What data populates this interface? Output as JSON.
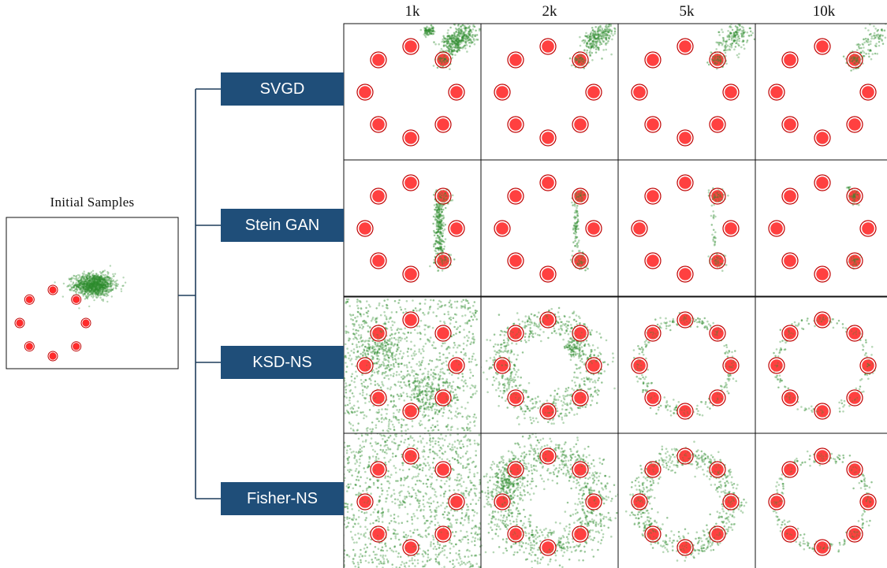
{
  "initial": {
    "title": "Initial Samples",
    "cluster_center": [
      1.25,
      1.15
    ],
    "cluster_spread": [
      0.42,
      0.24
    ],
    "cluster_count": 1300
  },
  "checkpoints": [
    "1k",
    "2k",
    "5k",
    "10k"
  ],
  "methods": [
    "SVGD",
    "Stein GAN",
    "KSD-NS",
    "Fisher-NS"
  ],
  "colors": {
    "mode_fill": "#ff2b2b",
    "mode_ring": "#c00000",
    "sample": "#2e8b2e",
    "method_box": "#1f4e79",
    "connector": "#1f3d5c"
  },
  "target_modes": {
    "radius": 1,
    "count": 8
  },
  "sample_patterns": [
    [
      {
        "kind": "mode",
        "mode": "top-right",
        "spread": 0.07,
        "count": 220
      },
      {
        "kind": "streak",
        "from": [
          0.8,
          0.95
        ],
        "to": [
          1.3,
          1.35
        ],
        "spread": 0.12,
        "count": 380
      },
      {
        "kind": "streak",
        "from": [
          0.3,
          1.3
        ],
        "to": [
          0.45,
          1.38
        ],
        "spread": 0.05,
        "count": 80
      }
    ],
    [
      {
        "kind": "mode",
        "mode": "top-right",
        "spread": 0.07,
        "count": 220
      },
      {
        "kind": "streak",
        "from": [
          0.85,
          1.0
        ],
        "to": [
          1.3,
          1.35
        ],
        "spread": 0.12,
        "count": 250
      }
    ],
    [
      {
        "kind": "mode",
        "mode": "top-right",
        "spread": 0.07,
        "count": 220
      },
      {
        "kind": "streak",
        "from": [
          0.85,
          1.0
        ],
        "to": [
          1.3,
          1.35
        ],
        "spread": 0.13,
        "count": 160
      }
    ],
    [
      {
        "kind": "mode",
        "mode": "top-right",
        "spread": 0.07,
        "count": 220
      },
      {
        "kind": "streak",
        "from": [
          0.9,
          1.0
        ],
        "to": [
          1.3,
          1.3
        ],
        "spread": 0.13,
        "count": 90
      }
    ],
    [
      {
        "kind": "mode",
        "mode": "top-right",
        "spread": 0.08,
        "count": 160
      },
      {
        "kind": "mode",
        "mode": "bottom-right",
        "spread": 0.08,
        "count": 160
      },
      {
        "kind": "streak",
        "from": [
          0.62,
          0.6
        ],
        "to": [
          0.62,
          -0.6
        ],
        "spread": 0.05,
        "count": 260
      }
    ],
    [
      {
        "kind": "mode",
        "mode": "top-right",
        "spread": 0.07,
        "count": 160
      },
      {
        "kind": "mode",
        "mode": "bottom-right",
        "spread": 0.07,
        "count": 160
      },
      {
        "kind": "streak",
        "from": [
          0.62,
          0.5
        ],
        "to": [
          0.62,
          -0.5
        ],
        "spread": 0.03,
        "count": 70
      }
    ],
    [
      {
        "kind": "mode",
        "mode": "top-right",
        "spread": 0.07,
        "count": 170
      },
      {
        "kind": "mode",
        "mode": "bottom-right",
        "spread": 0.07,
        "count": 140
      },
      {
        "kind": "streak",
        "from": [
          0.62,
          0.4
        ],
        "to": [
          0.62,
          -0.4
        ],
        "spread": 0.03,
        "count": 20
      }
    ],
    [
      {
        "kind": "mode",
        "mode": "top-right",
        "spread": 0.06,
        "count": 170
      },
      {
        "kind": "mode",
        "mode": "bottom-right",
        "spread": 0.06,
        "count": 140
      },
      {
        "kind": "streak",
        "from": [
          0.65,
          0.75
        ],
        "to": [
          0.55,
          0.9
        ],
        "spread": 0.04,
        "count": 20
      }
    ],
    [
      {
        "kind": "uniform",
        "radius": 1.45,
        "count": 950
      },
      {
        "kind": "blob",
        "center": [
          -0.7,
          0.4
        ],
        "spread": [
          0.25,
          0.3
        ],
        "count": 250
      },
      {
        "kind": "blob",
        "center": [
          0.4,
          -0.55
        ],
        "spread": [
          0.3,
          0.25
        ],
        "count": 220
      }
    ],
    [
      {
        "kind": "ring",
        "radius": 1.0,
        "spread": 0.17,
        "count": 800
      },
      {
        "kind": "blob",
        "center": [
          0.55,
          0.4
        ],
        "spread": [
          0.1,
          0.1
        ],
        "count": 80
      }
    ],
    [
      {
        "kind": "ring",
        "radius": 1.0,
        "spread": 0.07,
        "count": 320
      },
      {
        "kind": "modes_all",
        "spread": 0.04,
        "count": 160
      }
    ],
    [
      {
        "kind": "ring",
        "radius": 1.0,
        "spread": 0.06,
        "count": 200
      },
      {
        "kind": "modes_all",
        "spread": 0.04,
        "count": 160
      }
    ],
    [
      {
        "kind": "uniform",
        "radius": 1.55,
        "count": 1250
      }
    ],
    [
      {
        "kind": "ring",
        "radius": 1.05,
        "spread": 0.25,
        "count": 1050
      },
      {
        "kind": "blob",
        "center": [
          -0.9,
          0.4
        ],
        "spread": [
          0.2,
          0.25
        ],
        "count": 200
      }
    ],
    [
      {
        "kind": "ring",
        "radius": 1.0,
        "spread": 0.13,
        "count": 650
      },
      {
        "kind": "modes_all",
        "spread": 0.08,
        "count": 260
      }
    ],
    [
      {
        "kind": "ring",
        "radius": 1.0,
        "spread": 0.07,
        "count": 230
      },
      {
        "kind": "modes_all",
        "spread": 0.05,
        "count": 200
      }
    ]
  ]
}
